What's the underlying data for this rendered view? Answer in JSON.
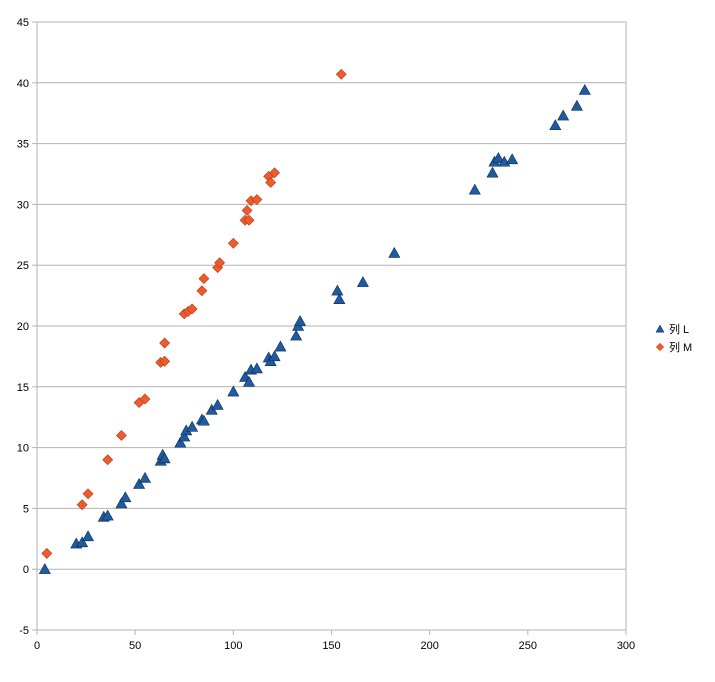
{
  "chart_data": {
    "type": "scatter",
    "title": "",
    "xlabel": "",
    "ylabel": "",
    "xlim": [
      0,
      300
    ],
    "ylim": [
      -5,
      45
    ],
    "x_ticks": [
      0,
      50,
      100,
      150,
      200,
      250,
      300
    ],
    "y_ticks": [
      -5,
      0,
      5,
      10,
      15,
      20,
      25,
      30,
      35,
      40,
      45
    ],
    "x_tick_labels": [
      "0",
      "50",
      "100",
      "150",
      "200",
      "250",
      "300"
    ],
    "y_tick_labels": [
      "-5",
      "0",
      "5",
      "10",
      "15",
      "20",
      "25",
      "30",
      "35",
      "40",
      "45"
    ],
    "grid": "horizontal",
    "legend_position": "right",
    "series": [
      {
        "name": "列 L",
        "marker": "triangle",
        "color": "#1f5b9e",
        "points": [
          [
            4,
            0
          ],
          [
            20,
            2.1
          ],
          [
            23,
            2.2
          ],
          [
            26,
            2.7
          ],
          [
            34,
            4.3
          ],
          [
            36,
            4.4
          ],
          [
            43,
            5.4
          ],
          [
            45,
            5.9
          ],
          [
            52,
            7
          ],
          [
            55,
            7.5
          ],
          [
            63,
            8.9
          ],
          [
            64,
            9.4
          ],
          [
            65,
            9.1
          ],
          [
            73,
            10.4
          ],
          [
            75,
            10.9
          ],
          [
            76,
            11.4
          ],
          [
            79,
            11.7
          ],
          [
            84,
            12.3
          ],
          [
            85,
            12.2
          ],
          [
            89,
            13.1
          ],
          [
            92,
            13.5
          ],
          [
            100,
            14.6
          ],
          [
            106,
            15.8
          ],
          [
            108,
            15.4
          ],
          [
            109,
            16.4
          ],
          [
            112,
            16.5
          ],
          [
            118,
            17.4
          ],
          [
            119,
            17.1
          ],
          [
            121,
            17.5
          ],
          [
            124,
            18.3
          ],
          [
            132,
            19.2
          ],
          [
            133,
            20
          ],
          [
            134,
            20.4
          ],
          [
            153,
            22.9
          ],
          [
            154,
            22.2
          ],
          [
            166,
            23.6
          ],
          [
            182,
            26
          ],
          [
            223,
            31.2
          ],
          [
            232,
            32.6
          ],
          [
            233,
            33.5
          ],
          [
            235,
            33.8
          ],
          [
            238,
            33.5
          ],
          [
            242,
            33.7
          ],
          [
            264,
            36.5
          ],
          [
            268,
            37.3
          ],
          [
            275,
            38.1
          ],
          [
            279,
            39.4
          ]
        ]
      },
      {
        "name": "列 M",
        "marker": "diamond",
        "color": "#ef5b2d",
        "points": [
          [
            5,
            1.3
          ],
          [
            23,
            5.3
          ],
          [
            26,
            6.2
          ],
          [
            36,
            9
          ],
          [
            43,
            11
          ],
          [
            52,
            13.7
          ],
          [
            55,
            14
          ],
          [
            63,
            17
          ],
          [
            65,
            17.1
          ],
          [
            65,
            18.6
          ],
          [
            75,
            21
          ],
          [
            77,
            21.2
          ],
          [
            79,
            21.4
          ],
          [
            84,
            22.9
          ],
          [
            85,
            23.9
          ],
          [
            92,
            24.8
          ],
          [
            93,
            25.2
          ],
          [
            100,
            26.8
          ],
          [
            106,
            28.7
          ],
          [
            107,
            29.5
          ],
          [
            108,
            28.7
          ],
          [
            109,
            30.3
          ],
          [
            112,
            30.4
          ],
          [
            118,
            32.3
          ],
          [
            119,
            31.8
          ],
          [
            121,
            32.6
          ],
          [
            155,
            40.7
          ]
        ]
      }
    ]
  }
}
